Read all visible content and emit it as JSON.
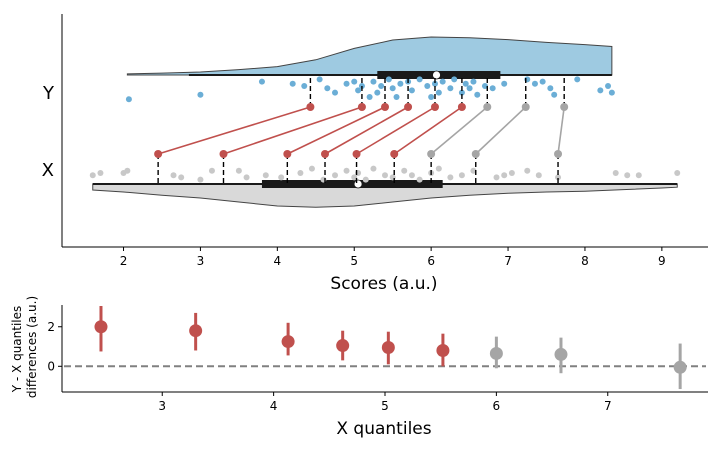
{
  "colors": {
    "y_fill": "#9ecae1",
    "y_points": "#6baed6",
    "x_fill": "#d9d9d9",
    "x_points": "#c8c8c8",
    "red": "#c0504d",
    "gray": "#a5a5a5",
    "box": "#1a1a1a",
    "zero_line": "#808080"
  },
  "chart_data": [
    {
      "type": "shift-plot",
      "xlabel": "Scores (a.u.)",
      "ylabel": "",
      "xlim": [
        1.2,
        9.6
      ],
      "x_ticks": [
        2,
        3,
        4,
        5,
        6,
        7,
        8,
        9
      ],
      "y_categories": [
        "Y",
        "X"
      ],
      "grid": false,
      "groups": {
        "Y": {
          "range": [
            2.05,
            8.35
          ],
          "whisker": [
            2.85,
            8.35
          ],
          "box": [
            5.3,
            6.9
          ],
          "median": 6.07,
          "deciles": [
            4.43,
            5.1,
            5.4,
            5.7,
            6.05,
            6.4,
            6.73,
            7.23,
            7.73
          ],
          "density": [
            [
              2.05,
              0.03
            ],
            [
              2.5,
              0.05
            ],
            [
              3.0,
              0.08
            ],
            [
              3.5,
              0.14
            ],
            [
              4.0,
              0.22
            ],
            [
              4.5,
              0.4
            ],
            [
              5.0,
              0.7
            ],
            [
              5.5,
              0.92
            ],
            [
              6.0,
              1.0
            ],
            [
              6.5,
              0.98
            ],
            [
              7.0,
              0.93
            ],
            [
              7.5,
              0.86
            ],
            [
              8.0,
              0.8
            ],
            [
              8.35,
              0.75
            ]
          ],
          "points": [
            [
              2.07,
              -0.55
            ],
            [
              3.0,
              -0.45
            ],
            [
              3.8,
              -0.15
            ],
            [
              4.2,
              -0.2
            ],
            [
              4.35,
              -0.25
            ],
            [
              4.55,
              -0.1
            ],
            [
              4.65,
              -0.3
            ],
            [
              4.75,
              -0.4
            ],
            [
              4.9,
              -0.2
            ],
            [
              5.0,
              -0.15
            ],
            [
              5.05,
              -0.35
            ],
            [
              5.1,
              -0.25
            ],
            [
              5.2,
              -0.5
            ],
            [
              5.25,
              -0.15
            ],
            [
              5.3,
              -0.4
            ],
            [
              5.35,
              -0.25
            ],
            [
              5.45,
              -0.1
            ],
            [
              5.5,
              -0.3
            ],
            [
              5.55,
              -0.5
            ],
            [
              5.6,
              -0.2
            ],
            [
              5.7,
              -0.15
            ],
            [
              5.75,
              -0.35
            ],
            [
              5.85,
              -0.1
            ],
            [
              5.95,
              -0.25
            ],
            [
              6.0,
              -0.5
            ],
            [
              6.05,
              -0.2
            ],
            [
              6.1,
              -0.4
            ],
            [
              6.15,
              -0.15
            ],
            [
              6.25,
              -0.3
            ],
            [
              6.3,
              -0.1
            ],
            [
              6.4,
              -0.4
            ],
            [
              6.45,
              -0.2
            ],
            [
              6.5,
              -0.3
            ],
            [
              6.55,
              -0.15
            ],
            [
              6.6,
              -0.45
            ],
            [
              6.7,
              -0.25
            ],
            [
              6.8,
              -0.3
            ],
            [
              6.95,
              -0.2
            ],
            [
              7.25,
              -0.1
            ],
            [
              7.35,
              -0.2
            ],
            [
              7.45,
              -0.15
            ],
            [
              7.55,
              -0.3
            ],
            [
              7.6,
              -0.45
            ],
            [
              7.9,
              -0.1
            ],
            [
              8.2,
              -0.35
            ],
            [
              8.3,
              -0.25
            ],
            [
              8.35,
              -0.4
            ]
          ]
        },
        "X": {
          "range": [
            1.6,
            9.2
          ],
          "whisker": [
            1.6,
            9.2
          ],
          "box": [
            3.8,
            6.15
          ],
          "median": 5.05,
          "deciles": [
            2.45,
            3.3,
            4.13,
            4.62,
            5.03,
            5.52,
            6.0,
            6.58,
            7.65
          ],
          "density": [
            [
              1.6,
              0.15
            ],
            [
              2.0,
              0.2
            ],
            [
              2.5,
              0.28
            ],
            [
              3.0,
              0.35
            ],
            [
              3.5,
              0.45
            ],
            [
              4.0,
              0.55
            ],
            [
              4.5,
              0.58
            ],
            [
              5.0,
              0.55
            ],
            [
              5.5,
              0.45
            ],
            [
              6.0,
              0.35
            ],
            [
              6.5,
              0.28
            ],
            [
              7.0,
              0.23
            ],
            [
              7.5,
              0.2
            ],
            [
              8.0,
              0.18
            ],
            [
              8.5,
              0.14
            ],
            [
              9.0,
              0.1
            ],
            [
              9.2,
              0.08
            ]
          ],
          "points": [
            [
              1.6,
              0.2
            ],
            [
              1.7,
              0.25
            ],
            [
              2.0,
              0.25
            ],
            [
              2.05,
              0.3
            ],
            [
              2.65,
              0.2
            ],
            [
              2.75,
              0.15
            ],
            [
              3.0,
              0.1
            ],
            [
              3.15,
              0.3
            ],
            [
              3.5,
              0.3
            ],
            [
              3.6,
              0.15
            ],
            [
              3.85,
              0.2
            ],
            [
              4.05,
              0.15
            ],
            [
              4.3,
              0.25
            ],
            [
              4.45,
              0.35
            ],
            [
              4.6,
              0.1
            ],
            [
              4.75,
              0.2
            ],
            [
              4.9,
              0.3
            ],
            [
              5.0,
              0.15
            ],
            [
              5.05,
              0.25
            ],
            [
              5.15,
              0.1
            ],
            [
              5.25,
              0.35
            ],
            [
              5.4,
              0.2
            ],
            [
              5.5,
              0.15
            ],
            [
              5.65,
              0.3
            ],
            [
              5.75,
              0.2
            ],
            [
              5.85,
              0.1
            ],
            [
              6.0,
              0.25
            ],
            [
              6.1,
              0.35
            ],
            [
              6.25,
              0.15
            ],
            [
              6.4,
              0.2
            ],
            [
              6.55,
              0.3
            ],
            [
              6.85,
              0.15
            ],
            [
              6.95,
              0.2
            ],
            [
              7.05,
              0.25
            ],
            [
              7.25,
              0.3
            ],
            [
              7.4,
              0.2
            ],
            [
              7.65,
              0.15
            ],
            [
              8.4,
              0.25
            ],
            [
              8.55,
              0.2
            ],
            [
              8.7,
              0.2
            ],
            [
              9.2,
              0.25
            ]
          ]
        }
      },
      "decile_colors": [
        "red",
        "red",
        "red",
        "red",
        "red",
        "red",
        "gray",
        "gray",
        "gray"
      ]
    },
    {
      "type": "scatter",
      "xlabel": "X quantiles",
      "ylabel_lines": [
        "Y - X quantiles",
        "differences (a.u.)"
      ],
      "xlim": [
        2.1,
        7.9
      ],
      "ylim": [
        -1.3,
        3.1
      ],
      "x_ticks": [
        3,
        4,
        5,
        6,
        7
      ],
      "y_ticks": [
        0,
        2
      ],
      "grid": false,
      "reference_line_y": 0,
      "points": [
        {
          "x": 2.45,
          "y": 2.0,
          "lo": 0.75,
          "hi": 3.05,
          "color": "red"
        },
        {
          "x": 3.3,
          "y": 1.8,
          "lo": 0.8,
          "hi": 2.7,
          "color": "red"
        },
        {
          "x": 4.13,
          "y": 1.25,
          "lo": 0.55,
          "hi": 2.2,
          "color": "red"
        },
        {
          "x": 4.62,
          "y": 1.05,
          "lo": 0.3,
          "hi": 1.8,
          "color": "red"
        },
        {
          "x": 5.03,
          "y": 0.95,
          "lo": 0.1,
          "hi": 1.75,
          "color": "red"
        },
        {
          "x": 5.52,
          "y": 0.8,
          "lo": 0.0,
          "hi": 1.65,
          "color": "red"
        },
        {
          "x": 6.0,
          "y": 0.65,
          "lo": -0.1,
          "hi": 1.5,
          "color": "gray"
        },
        {
          "x": 6.58,
          "y": 0.6,
          "lo": -0.35,
          "hi": 1.45,
          "color": "gray"
        },
        {
          "x": 7.65,
          "y": -0.05,
          "lo": -1.15,
          "hi": 1.15,
          "color": "gray"
        }
      ]
    }
  ]
}
